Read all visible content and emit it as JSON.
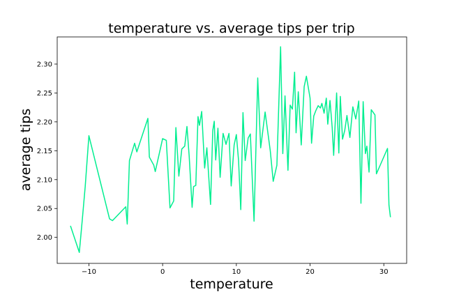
{
  "chart_data": {
    "type": "line",
    "title": "temperature vs. average tips per trip",
    "xlabel": "temperature",
    "ylabel": "average tips",
    "xlim": [
      -14.3,
      33.1
    ],
    "ylim": [
      1.955,
      2.347
    ],
    "xticks": [
      -10,
      0,
      10,
      20,
      30
    ],
    "yticks": [
      2.0,
      2.05,
      2.1,
      2.15,
      2.2,
      2.25,
      2.3
    ],
    "grid": false,
    "color": "#00ee90",
    "series": [
      {
        "name": "",
        "x": [
          -12.5,
          -11.3,
          -10.9,
          -10.5,
          -10.0,
          -7.2,
          -6.8,
          -5.0,
          -4.8,
          -4.5,
          -3.8,
          -3.5,
          -2.0,
          -1.8,
          -1.2,
          -1.0,
          0.0,
          0.5,
          1.0,
          1.5,
          1.8,
          2.2,
          2.6,
          3.0,
          3.3,
          3.6,
          4.0,
          4.2,
          4.5,
          4.8,
          5.0,
          5.3,
          5.7,
          6.0,
          6.5,
          6.8,
          7.0,
          7.2,
          7.5,
          7.8,
          8.2,
          8.6,
          9.0,
          9.3,
          9.7,
          10.0,
          10.3,
          10.6,
          10.9,
          11.2,
          11.6,
          11.9,
          12.4,
          12.9,
          13.3,
          13.9,
          14.6,
          15.0,
          15.5,
          16.0,
          16.3,
          16.6,
          17.0,
          17.3,
          17.6,
          17.9,
          18.1,
          18.4,
          18.8,
          19.2,
          19.5,
          20.0,
          20.2,
          20.5,
          20.8,
          21.1,
          21.4,
          21.6,
          21.9,
          22.2,
          22.4,
          22.7,
          23.0,
          23.2,
          23.6,
          23.9,
          24.1,
          24.4,
          24.7,
          25.0,
          25.4,
          25.8,
          26.2,
          26.6,
          26.9,
          27.2,
          27.5,
          27.7,
          28.0,
          28.3,
          28.8,
          29.0,
          30.5,
          30.7,
          30.9
        ],
        "values": [
          2.02,
          1.974,
          2.03,
          2.088,
          2.176,
          2.032,
          2.029,
          2.053,
          2.023,
          2.133,
          2.163,
          2.148,
          2.206,
          2.139,
          2.125,
          2.114,
          2.171,
          2.168,
          2.051,
          2.063,
          2.19,
          2.106,
          2.153,
          2.158,
          2.192,
          2.141,
          2.052,
          2.088,
          2.09,
          2.209,
          2.194,
          2.218,
          2.12,
          2.155,
          2.057,
          2.185,
          2.201,
          2.134,
          2.189,
          2.104,
          2.18,
          2.161,
          2.18,
          2.089,
          2.16,
          2.178,
          2.133,
          2.048,
          2.216,
          2.133,
          2.172,
          2.179,
          2.028,
          2.276,
          2.155,
          2.217,
          2.15,
          2.097,
          2.125,
          2.33,
          2.145,
          2.245,
          2.116,
          2.229,
          2.222,
          2.286,
          2.181,
          2.252,
          2.16,
          2.261,
          2.279,
          2.241,
          2.163,
          2.21,
          2.22,
          2.228,
          2.224,
          2.232,
          2.215,
          2.241,
          2.196,
          2.237,
          2.19,
          2.142,
          2.25,
          2.146,
          2.244,
          2.17,
          2.185,
          2.211,
          2.173,
          2.226,
          2.205,
          2.236,
          2.059,
          2.235,
          2.145,
          2.158,
          2.113,
          2.221,
          2.212,
          2.11,
          2.154,
          2.056,
          2.035
        ]
      }
    ]
  }
}
